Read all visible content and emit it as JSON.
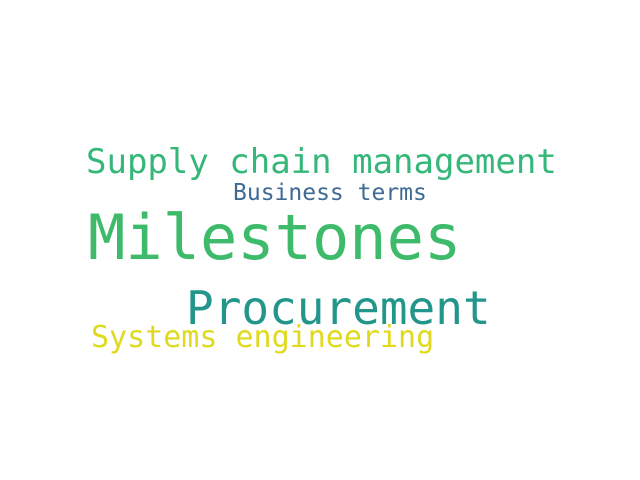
{
  "wordcloud": {
    "words": [
      {
        "text": "Milestones",
        "color": "#3dbb6a"
      },
      {
        "text": "Procurement",
        "color": "#22968a"
      },
      {
        "text": "Supply chain management",
        "color": "#35b77a"
      },
      {
        "text": "Systems engineering",
        "color": "#e0da1e"
      },
      {
        "text": "Business terms",
        "color": "#3e6a94"
      }
    ]
  }
}
